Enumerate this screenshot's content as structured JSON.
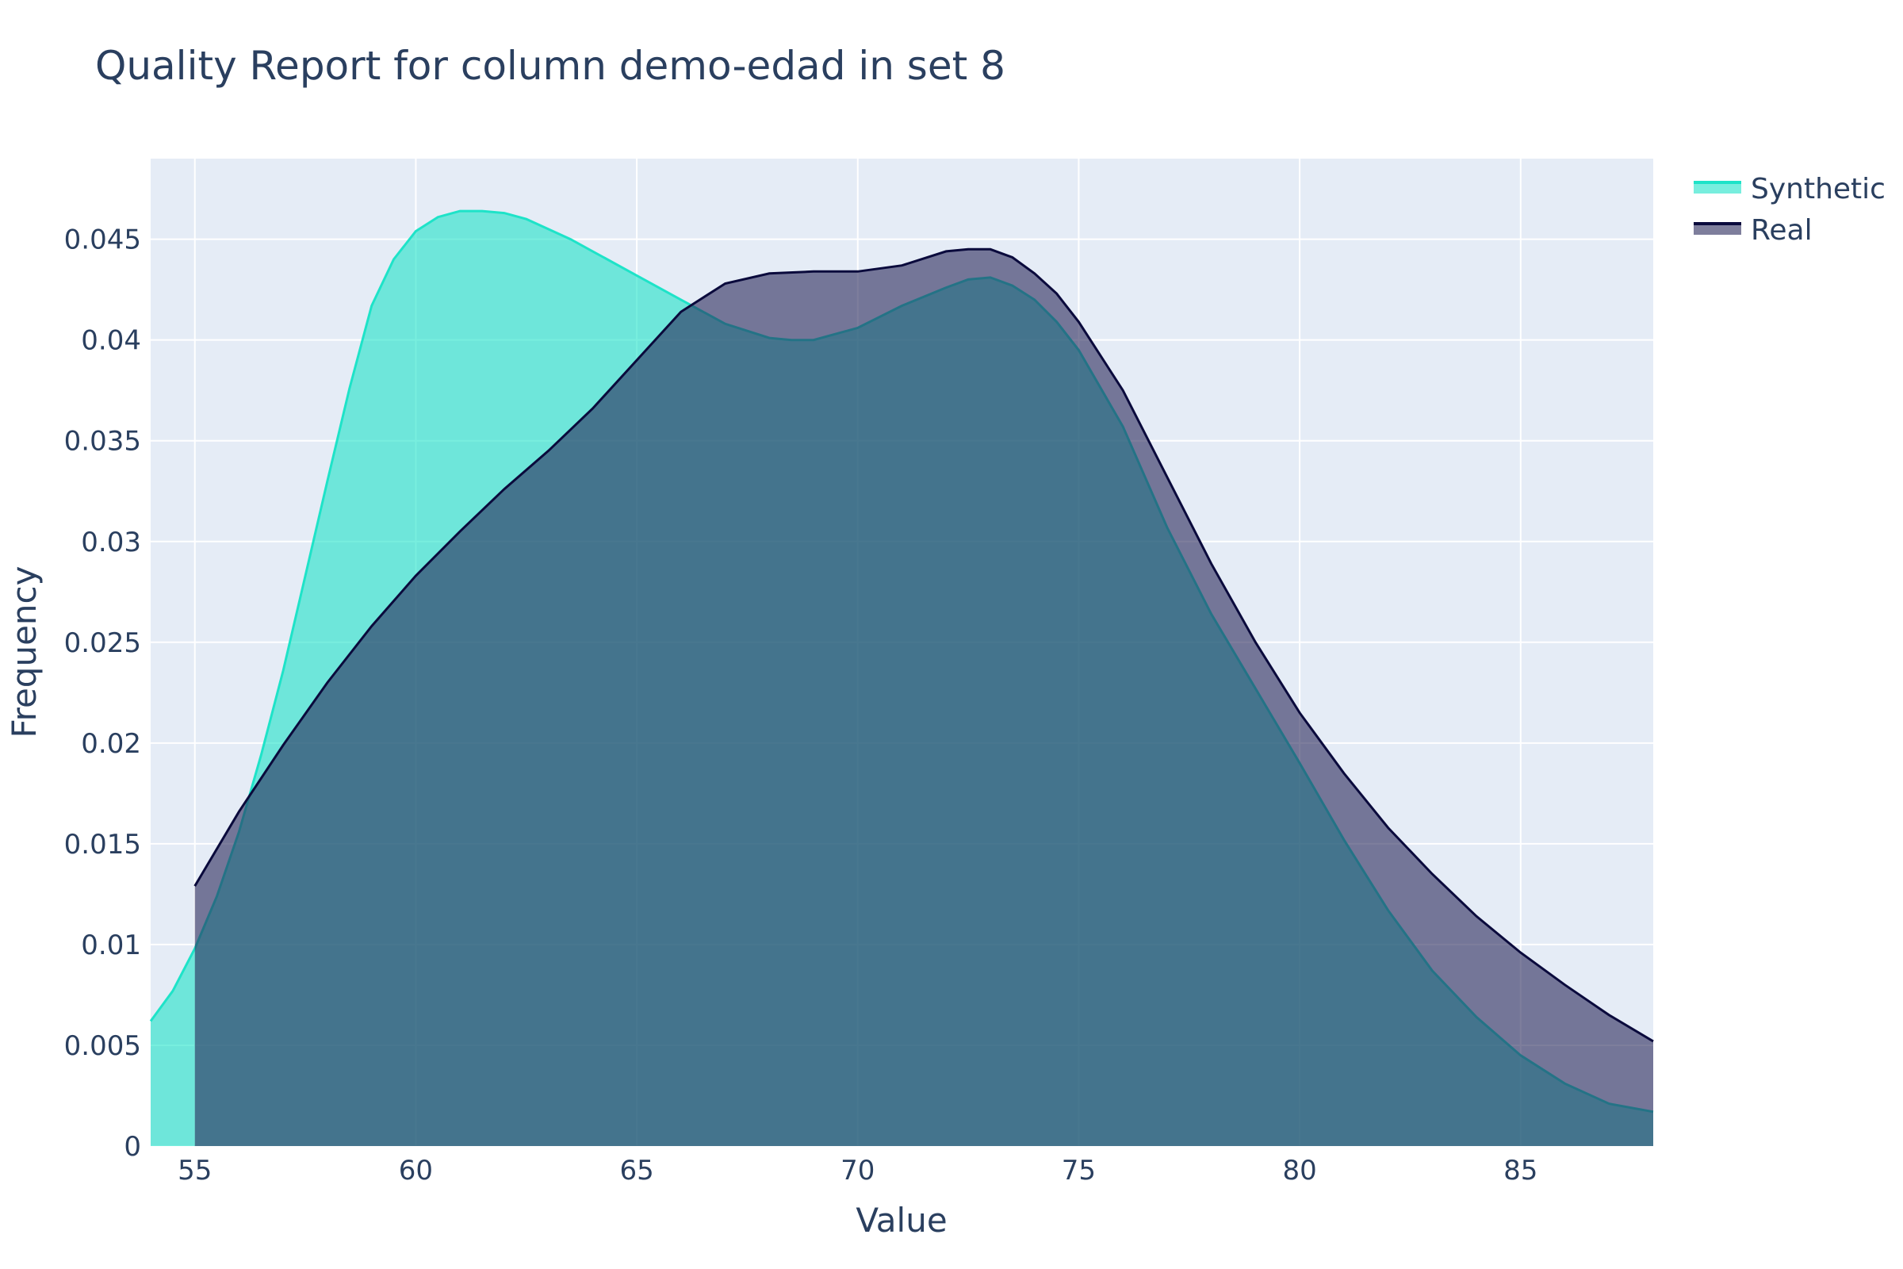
{
  "chart_data": {
    "type": "area",
    "title": "Quality Report for column demo-edad in set 8",
    "xlabel": "Value",
    "ylabel": "Frequency",
    "xlim": [
      54,
      88
    ],
    "ylim": [
      0,
      0.049
    ],
    "xticks": [
      55,
      60,
      65,
      70,
      75,
      80,
      85
    ],
    "yticks": [
      0,
      0.005,
      0.01,
      0.015,
      0.02,
      0.025,
      0.03,
      0.035,
      0.04,
      0.045
    ],
    "ytick_labels": [
      "0",
      "0.005",
      "0.01",
      "0.015",
      "0.02",
      "0.025",
      "0.03",
      "0.035",
      "0.04",
      "0.045"
    ],
    "grid": true,
    "legend_position": "top-right",
    "series": [
      {
        "name": "Real",
        "line_color": "#0a0a3c",
        "fill_color": "rgba(40,40,90,0.6)",
        "x": [
          55,
          56,
          57,
          58,
          59,
          60,
          61,
          62,
          63,
          64,
          65,
          66,
          67,
          68,
          69,
          70,
          71,
          72,
          72.5,
          73,
          73.5,
          74,
          74.5,
          75,
          76,
          77,
          78,
          79,
          80,
          81,
          82,
          83,
          84,
          85,
          86,
          87,
          88
        ],
        "y": [
          0.0129,
          0.0166,
          0.0199,
          0.023,
          0.0258,
          0.0283,
          0.0305,
          0.0326,
          0.0345,
          0.0366,
          0.039,
          0.0414,
          0.0428,
          0.0433,
          0.0434,
          0.0434,
          0.0437,
          0.0444,
          0.0445,
          0.0445,
          0.0441,
          0.0433,
          0.0423,
          0.0409,
          0.0375,
          0.0332,
          0.0289,
          0.025,
          0.0215,
          0.0185,
          0.0158,
          0.0135,
          0.0114,
          0.0096,
          0.008,
          0.0065,
          0.0052
        ]
      },
      {
        "name": "Synthetic",
        "line_color": "#1ee3c8",
        "fill_color": "rgba(30,227,200,0.6)",
        "x": [
          54,
          54.5,
          55,
          55.5,
          56,
          56.5,
          57,
          57.5,
          58,
          58.5,
          59,
          59.5,
          60,
          60.5,
          61,
          61.5,
          62,
          62.5,
          63,
          63.5,
          64,
          65,
          66,
          67,
          68,
          68.5,
          69,
          70,
          71,
          72,
          72.5,
          73,
          73.5,
          74,
          74.5,
          75,
          76,
          77,
          78,
          79,
          80,
          81,
          82,
          83,
          84,
          85,
          86,
          87,
          88
        ],
        "y": [
          0.0062,
          0.0077,
          0.0098,
          0.0124,
          0.0156,
          0.0194,
          0.0236,
          0.0283,
          0.033,
          0.0376,
          0.0417,
          0.044,
          0.0454,
          0.0461,
          0.0464,
          0.0464,
          0.0463,
          0.046,
          0.0455,
          0.045,
          0.0444,
          0.0432,
          0.042,
          0.0408,
          0.0401,
          0.04,
          0.04,
          0.0406,
          0.0417,
          0.0426,
          0.043,
          0.0431,
          0.0427,
          0.042,
          0.0409,
          0.0395,
          0.0357,
          0.0307,
          0.0264,
          0.0227,
          0.019,
          0.0152,
          0.0117,
          0.0087,
          0.0064,
          0.0045,
          0.0031,
          0.0021,
          0.0017
        ]
      }
    ]
  }
}
